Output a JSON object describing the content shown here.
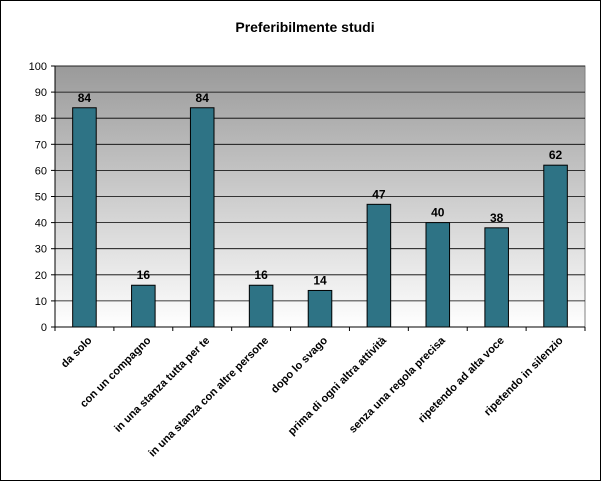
{
  "chart_data": {
    "type": "bar",
    "title": "Preferibilmente studi",
    "categories": [
      "da solo",
      "con un compagno",
      "in una stanza tutta per te",
      "in una stanza con altre persone",
      "dopo  lo svago",
      "prima di ogni  altra attività",
      "senza una regola precisa",
      "ripetendo ad alta voce",
      "ripetendo in silenzio"
    ],
    "values": [
      84,
      16,
      84,
      16,
      14,
      47,
      40,
      38,
      62
    ],
    "ylim": [
      0,
      100
    ],
    "yticks": [
      0,
      10,
      20,
      30,
      40,
      50,
      60,
      70,
      80,
      90,
      100
    ],
    "grid": true,
    "legend": "none",
    "colors": {
      "bar_fill": "#2e7385",
      "bar_stroke": "#000000",
      "plot_bg_top": "#9a9a9a",
      "plot_bg_bottom": "#ffffff",
      "gridline": "#000000"
    }
  }
}
